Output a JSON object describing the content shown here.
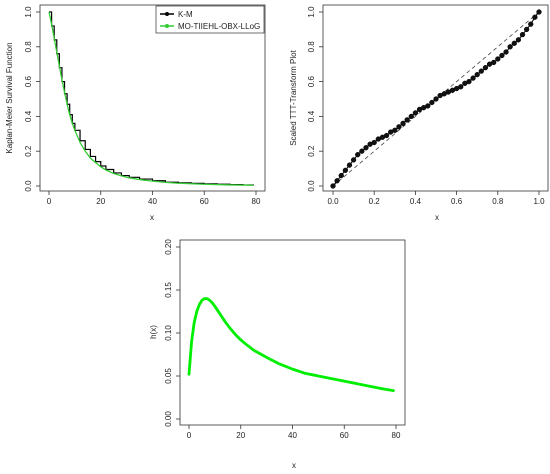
{
  "chart_data": [
    {
      "type": "line",
      "xlabel": "x",
      "ylabel": "Kaplan-Meier Survival Function",
      "xlim": [
        0,
        80
      ],
      "ylim": [
        0,
        1
      ],
      "xticks": [
        0,
        20,
        40,
        60,
        80
      ],
      "yticks": [
        0.0,
        0.2,
        0.4,
        0.6,
        0.8,
        1.0
      ],
      "ytick_labels": [
        "0.0",
        "0.2",
        "0.4",
        "0.6",
        "0.8",
        "1.0"
      ],
      "legend_position": "top-right",
      "series": [
        {
          "name": "K-M",
          "color": "#000000",
          "style": "step",
          "x": [
            0,
            1,
            2,
            3,
            4,
            5,
            6,
            7,
            8,
            9,
            10,
            12,
            14,
            16,
            18,
            20,
            22,
            25,
            28,
            31,
            35,
            40,
            45,
            50,
            55,
            60,
            65,
            70,
            75,
            79
          ],
          "y": [
            1.0,
            0.92,
            0.84,
            0.76,
            0.68,
            0.6,
            0.53,
            0.47,
            0.41,
            0.36,
            0.32,
            0.26,
            0.21,
            0.17,
            0.14,
            0.115,
            0.095,
            0.075,
            0.06,
            0.05,
            0.04,
            0.03,
            0.022,
            0.018,
            0.015,
            0.012,
            0.01,
            0.008,
            0.006,
            0.005
          ]
        },
        {
          "name": "MO-TIIEHL-OBX-LLoG",
          "color": "#33cc33",
          "style": "line",
          "x": [
            0,
            1,
            2,
            3,
            4,
            5,
            6,
            7,
            8,
            9,
            10,
            12,
            14,
            16,
            18,
            20,
            22,
            25,
            28,
            31,
            35,
            40,
            45,
            50,
            55,
            60,
            65,
            70,
            75,
            79
          ],
          "y": [
            1.0,
            0.93,
            0.85,
            0.77,
            0.69,
            0.61,
            0.54,
            0.47,
            0.41,
            0.36,
            0.32,
            0.25,
            0.2,
            0.16,
            0.135,
            0.11,
            0.092,
            0.072,
            0.058,
            0.047,
            0.037,
            0.028,
            0.021,
            0.016,
            0.013,
            0.01,
            0.008,
            0.006,
            0.005,
            0.004
          ]
        }
      ]
    },
    {
      "type": "scatter",
      "xlabel": "x",
      "ylabel": "Scaled TTT-Transform Plot",
      "xlim": [
        0,
        1
      ],
      "ylim": [
        0,
        1
      ],
      "xticks": [
        0,
        0.2,
        0.4,
        0.6,
        0.8,
        1.0
      ],
      "xtick_labels": [
        "0.0",
        "0.2",
        "0.4",
        "0.6",
        "0.8",
        "1.0"
      ],
      "yticks": [
        0,
        0.2,
        0.4,
        0.6,
        0.8,
        1.0
      ],
      "ytick_labels": [
        "0.0",
        "0.2",
        "0.4",
        "0.6",
        "0.8",
        "1.0"
      ],
      "reference_line": {
        "from": [
          0,
          0
        ],
        "to": [
          1,
          1
        ],
        "style": "dashed"
      },
      "points": {
        "x": [
          0.0,
          0.02,
          0.04,
          0.06,
          0.08,
          0.1,
          0.12,
          0.14,
          0.16,
          0.18,
          0.2,
          0.22,
          0.24,
          0.26,
          0.28,
          0.3,
          0.32,
          0.34,
          0.36,
          0.38,
          0.4,
          0.42,
          0.44,
          0.46,
          0.48,
          0.5,
          0.52,
          0.54,
          0.56,
          0.58,
          0.6,
          0.62,
          0.64,
          0.66,
          0.68,
          0.7,
          0.72,
          0.74,
          0.76,
          0.78,
          0.8,
          0.82,
          0.84,
          0.86,
          0.88,
          0.9,
          0.92,
          0.94,
          0.96,
          0.98,
          1.0
        ],
        "y": [
          0.0,
          0.03,
          0.06,
          0.09,
          0.12,
          0.15,
          0.18,
          0.2,
          0.22,
          0.24,
          0.25,
          0.27,
          0.28,
          0.29,
          0.31,
          0.32,
          0.34,
          0.36,
          0.38,
          0.4,
          0.42,
          0.44,
          0.45,
          0.46,
          0.48,
          0.5,
          0.52,
          0.53,
          0.54,
          0.55,
          0.56,
          0.57,
          0.59,
          0.6,
          0.62,
          0.64,
          0.66,
          0.68,
          0.7,
          0.71,
          0.73,
          0.75,
          0.77,
          0.8,
          0.82,
          0.84,
          0.87,
          0.9,
          0.93,
          0.97,
          1.0
        ]
      }
    },
    {
      "type": "line",
      "xlabel": "x",
      "ylabel": "h(x)",
      "xlim": [
        0,
        80
      ],
      "ylim": [
        0,
        0.2
      ],
      "xticks": [
        0,
        20,
        40,
        60,
        80
      ],
      "yticks": [
        0.0,
        0.05,
        0.1,
        0.15,
        0.2
      ],
      "ytick_labels": [
        "0.00",
        "0.05",
        "0.10",
        "0.15",
        "0.20"
      ],
      "series": [
        {
          "color": "#00ee00",
          "x": [
            0,
            1,
            2,
            3,
            4,
            5,
            6,
            7,
            8,
            9,
            10,
            12,
            14,
            16,
            18,
            20,
            22,
            25,
            28,
            31,
            35,
            40,
            45,
            50,
            55,
            60,
            65,
            70,
            75,
            79
          ],
          "y": [
            0.052,
            0.09,
            0.112,
            0.125,
            0.133,
            0.138,
            0.14,
            0.14,
            0.138,
            0.135,
            0.131,
            0.122,
            0.113,
            0.105,
            0.098,
            0.092,
            0.087,
            0.08,
            0.075,
            0.07,
            0.064,
            0.058,
            0.053,
            0.05,
            0.047,
            0.044,
            0.041,
            0.038,
            0.035,
            0.033
          ]
        }
      ]
    }
  ]
}
